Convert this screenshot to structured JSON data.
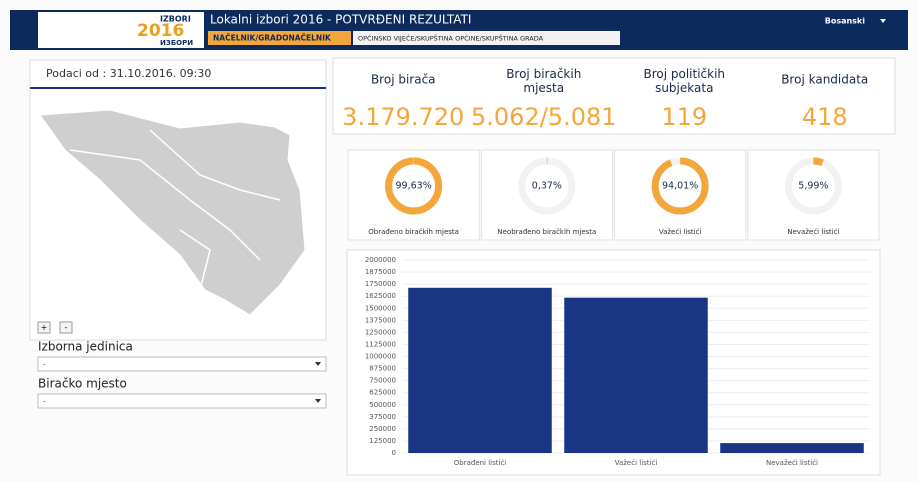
{
  "header": {
    "logo": {
      "top": "IZBORI",
      "year": "2016",
      "bottom": "ИЗБОРИ"
    },
    "title": "Lokalni izbori 2016 - POTVRĐENI REZULTATI",
    "tabs": [
      "NAČELNIK/GRADONAČELNIK",
      "OPĆINSKO VIJEĆE/SKUPŠTINA OPĆINE/SKUPŠTINA GRADA"
    ],
    "language": "Bosanski"
  },
  "left": {
    "updated": "Podaci od : 31.10.2016. 09:30",
    "zoom": [
      "+",
      "-"
    ],
    "fields": [
      {
        "label": "Izborna jedinica",
        "value": "-"
      },
      {
        "label": "Biračko mjesto",
        "value": "-"
      }
    ]
  },
  "stats": [
    {
      "label": "Broj birača",
      "value": "3.179.720"
    },
    {
      "label": "Broj biračkih mjesta",
      "value": "5.062/5.081"
    },
    {
      "label": "Broj političkih subjekata",
      "value": "119"
    },
    {
      "label": "Broj kandidata",
      "value": "418"
    }
  ],
  "gauges": [
    {
      "value": 99.63,
      "label": "99,63%",
      "caption": "Obrađeno biračkih mjesta"
    },
    {
      "value": 0.37,
      "label": "0,37%",
      "caption": "Neobrađeno biračkih mjesta"
    },
    {
      "value": 94.01,
      "label": "94,01%",
      "caption": "Važeći listići"
    },
    {
      "value": 5.99,
      "label": "5,99%",
      "caption": "Nevažeći listići"
    }
  ],
  "chart_data": {
    "type": "bar",
    "categories": [
      "Obrađeni listići",
      "Važeći listići",
      "Nevažeći listići"
    ],
    "values": [
      1712000,
      1609500,
      102500
    ],
    "color": "#1b3585",
    "ylim": [
      0,
      2000000
    ],
    "yticks": [
      0,
      125000,
      250000,
      375000,
      500000,
      625000,
      750000,
      875000,
      1000000,
      1125000,
      1250000,
      1375000,
      1500000,
      1625000,
      1750000,
      1875000,
      2000000
    ],
    "grid": true
  }
}
